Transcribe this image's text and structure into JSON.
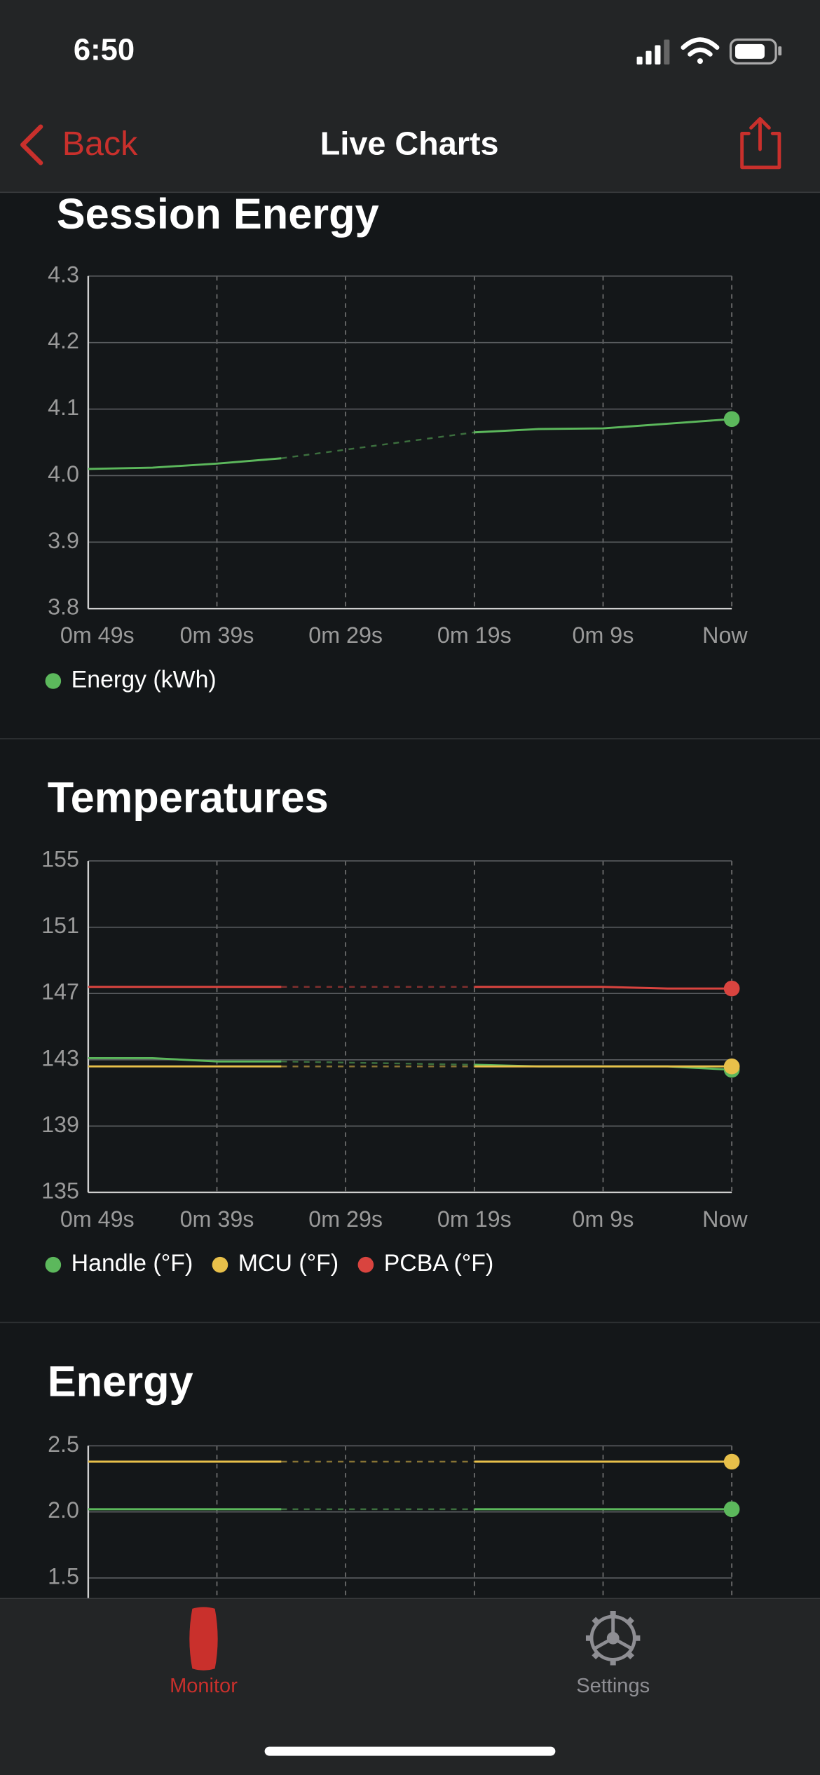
{
  "status_bar": {
    "time": "6:50"
  },
  "nav_bar": {
    "back": "Back",
    "title": "Live Charts"
  },
  "charts": [
    {
      "type": "line",
      "title": "Session Energy",
      "categories": [
        "0m 49s",
        null,
        "0m 39s",
        null,
        "0m 29s",
        null,
        "0m 19s",
        null,
        "0m 9s",
        null,
        "Now"
      ],
      "series": [
        {
          "name": "Energy (kWh)",
          "color": "#5cb85c",
          "values": [
            4.01,
            4.012,
            4.018,
            4.026,
            null,
            null,
            4.065,
            4.07,
            4.071,
            4.078,
            4.085
          ]
        }
      ],
      "ylim": [
        3.8,
        4.3
      ],
      "yticks": [
        3.8,
        3.9,
        {
          "value": 4,
          "label": "4.0"
        },
        4.1,
        4.2,
        4.3
      ],
      "grid": true
    },
    {
      "type": "line",
      "title": "Temperatures",
      "categories": [
        "0m 49s",
        null,
        "0m 39s",
        null,
        "0m 29s",
        null,
        "0m 19s",
        null,
        "0m 9s",
        null,
        "Now"
      ],
      "series": [
        {
          "name": "Handle (°F)",
          "color": "#5cb85c",
          "values": [
            143.1,
            143.1,
            142.9,
            142.9,
            null,
            null,
            142.7,
            142.6,
            142.6,
            142.6,
            142.4
          ]
        },
        {
          "name": "MCU (°F)",
          "color": "#e8c04a",
          "values": [
            142.6,
            142.6,
            142.6,
            142.6,
            null,
            null,
            142.6,
            142.6,
            142.6,
            142.6,
            142.6
          ]
        },
        {
          "name": "PCBA (°F)",
          "color": "#d9443f",
          "values": [
            147.4,
            147.4,
            147.4,
            147.4,
            null,
            null,
            147.4,
            147.4,
            147.4,
            147.3,
            147.3
          ]
        }
      ],
      "ylim": [
        135,
        155
      ],
      "yticks": [
        135,
        139,
        143,
        147,
        151,
        155
      ],
      "grid": true
    },
    {
      "type": "line",
      "title": "Energy",
      "series": [
        {
          "color": "#e8c04a",
          "values": [
            2.38,
            2.38,
            2.38,
            2.38,
            null,
            null,
            2.38,
            2.38,
            2.38,
            2.38,
            2.38
          ]
        },
        {
          "color": "#5cb85c",
          "values": [
            2.02,
            2.02,
            2.02,
            2.02,
            null,
            null,
            2.02,
            2.02,
            2.02,
            2.02,
            2.02
          ]
        }
      ],
      "ylim": [
        0,
        2.5
      ],
      "yticks": [
        1.5,
        {
          "value": 2,
          "label": "2.0"
        },
        2.5
      ],
      "grid": true
    }
  ],
  "tab_bar": {
    "items": [
      "Monitor",
      "Settings"
    ]
  }
}
